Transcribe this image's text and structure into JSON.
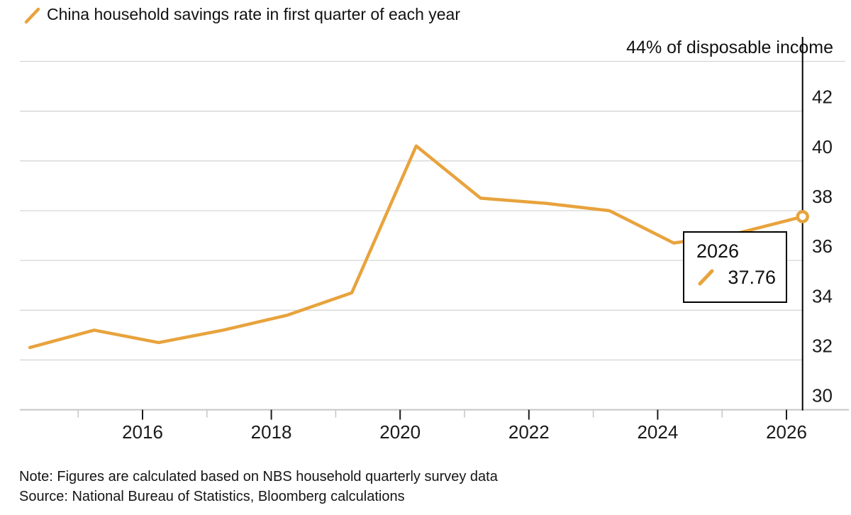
{
  "legend": {
    "label": "China household savings rate in first quarter of each year"
  },
  "y_axis_unit_label": "44% of disposable income",
  "tooltip": {
    "year": "2026",
    "value": "37.76"
  },
  "note": "Note: Figures are calculated based on NBS household quarterly survey data",
  "source": "Source: National Bureau of Statistics, Bloomberg calculations",
  "colors": {
    "series": "#E8A33D",
    "grid": "#D6D6D6",
    "axis": "#C6C6C6",
    "tick_major": "#1A1A1A",
    "marker_line": "#000000",
    "text": "#1A1A1A"
  },
  "chart_data": {
    "type": "line",
    "title": "China household savings rate in first quarter of each year",
    "ylabel": "% of disposable income",
    "x": [
      2014,
      2015,
      2016,
      2017,
      2018,
      2019,
      2020,
      2021,
      2022,
      2023,
      2024,
      2025,
      2026
    ],
    "values": [
      32.5,
      33.2,
      32.7,
      33.2,
      33.8,
      34.7,
      40.6,
      38.5,
      38.3,
      38.0,
      36.7,
      37.1,
      37.76
    ],
    "series_name": "China household savings rate in first quarter of each year",
    "y_ticks": [
      30,
      32,
      34,
      36,
      38,
      40,
      42,
      44
    ],
    "x_major_ticks": [
      2016,
      2018,
      2020,
      2022,
      2024,
      2026
    ],
    "x_minor_ticks": [
      2015,
      2017,
      2019,
      2021,
      2023,
      2025
    ],
    "ylim": [
      30,
      44
    ],
    "grid": true,
    "legend_position": "top-left",
    "annotation": {
      "year": 2026,
      "value": 37.76,
      "marker": "open-circle",
      "vertical_line_at_last_point": true
    }
  }
}
